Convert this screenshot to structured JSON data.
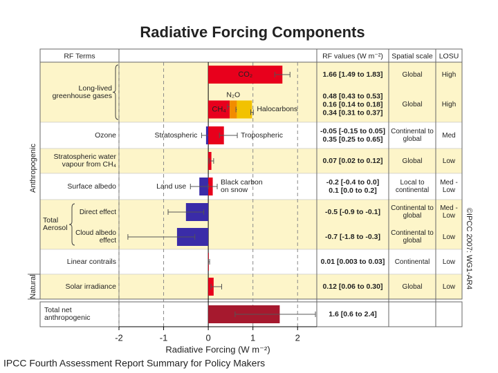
{
  "footer": "IPCC Fourth Assessment Report Summary for Policy Makers",
  "credit": "©IPCC 2007: WG1-AR4",
  "chart_data": {
    "type": "bar",
    "orientation": "horizontal",
    "title": "Radiative Forcing Components",
    "headers": [
      "RF Terms",
      "RF values (W m⁻²)",
      "Spatial scale",
      "LOSU"
    ],
    "xlabel": "Radiative Forcing (W m⁻²)",
    "xlim": [
      -2,
      2.43
    ],
    "xticks": [
      -2,
      -1,
      0,
      1,
      2
    ],
    "grid": true,
    "sections": [
      {
        "name": "Anthropogenic",
        "rows": [
          {
            "term": "Long-lived greenhouse gases",
            "subrows": [
              {
                "scale": "Global",
                "losu": "High",
                "bars": [
                  {
                    "name": "CO₂",
                    "label_at": "inside",
                    "value": 1.66,
                    "range": [
                      1.49,
                      1.83
                    ],
                    "value_label": "1.66 [1.49 to 1.83]",
                    "color": "#e8001c"
                  }
                ]
              },
              {
                "scale": "Global",
                "losu": "High",
                "stacked": true,
                "bars": [
                  {
                    "name": "CH₄",
                    "label_at": "inside",
                    "value": 0.48,
                    "range": [
                      0.43,
                      0.53
                    ],
                    "value_label": "0.48 [0.43 to 0.53]",
                    "color": "#e8001c"
                  },
                  {
                    "name": "N₂O",
                    "label_at": "above",
                    "value": 0.16,
                    "range": [
                      0.14,
                      0.18
                    ],
                    "value_label": "0.16 [0.14 to 0.18]",
                    "color": "#f28c00"
                  },
                  {
                    "name": "Halocarbons",
                    "label_at": "right",
                    "value": 0.34,
                    "range": [
                      0.31,
                      0.37
                    ],
                    "value_label": "0.34 [0.31 to 0.37]",
                    "color": "#f2c200"
                  }
                ]
              }
            ]
          },
          {
            "term": "Ozone",
            "subrows": [
              {
                "scale": "Continental to global",
                "losu": "Med",
                "bars": [
                  {
                    "name": "Stratospheric",
                    "label_at": "left",
                    "value": -0.05,
                    "range": [
                      -0.15,
                      0.05
                    ],
                    "value_label": "-0.05 [-0.15 to 0.05]",
                    "color": "#3a2ca8"
                  },
                  {
                    "name": "Tropospheric",
                    "label_at": "right",
                    "value": 0.35,
                    "range": [
                      0.25,
                      0.65
                    ],
                    "value_label": "0.35 [0.25 to 0.65]",
                    "color": "#e8001c"
                  }
                ]
              }
            ]
          },
          {
            "term": "Stratospheric water vapour from CH₄",
            "subrows": [
              {
                "scale": "Global",
                "losu": "Low",
                "bars": [
                  {
                    "value": 0.07,
                    "range": [
                      0.02,
                      0.12
                    ],
                    "value_label": "0.07 [0.02 to 0.12]",
                    "color": "#e8001c"
                  }
                ]
              }
            ]
          },
          {
            "term": "Surface albedo",
            "subrows": [
              {
                "scale": "Local to continental",
                "losu": "Med - Low",
                "bars": [
                  {
                    "name": "Land use",
                    "label_at": "left",
                    "value": -0.2,
                    "range": [
                      -0.4,
                      0.0
                    ],
                    "value_label": "-0.2 [-0.4 to 0.0]",
                    "color": "#3a2ca8"
                  },
                  {
                    "name": "Black carbon on snow",
                    "label_at": "right",
                    "value": 0.1,
                    "range": [
                      0.0,
                      0.2
                    ],
                    "value_label": "0.1 [0.0 to 0.2]",
                    "color": "#e8001c"
                  }
                ]
              }
            ]
          },
          {
            "term": "Total Aerosol",
            "subrows": [
              {
                "term": "Direct effect",
                "scale": "Continental to global",
                "losu": "Med - Low",
                "bars": [
                  {
                    "value": -0.5,
                    "range": [
                      -0.9,
                      -0.1
                    ],
                    "value_label": "-0.5 [-0.9 to -0.1]",
                    "color": "#3a2ca8"
                  }
                ]
              },
              {
                "term": "Cloud albedo effect",
                "scale": "Continental to global",
                "losu": "Low",
                "bars": [
                  {
                    "value": -0.7,
                    "range": [
                      -1.8,
                      -0.3
                    ],
                    "value_label": "-0.7 [-1.8 to -0.3]",
                    "color": "#3a2ca8"
                  }
                ]
              }
            ]
          },
          {
            "term": "Linear contrails",
            "subrows": [
              {
                "scale": "Continental",
                "losu": "Low",
                "bars": [
                  {
                    "value": 0.01,
                    "range": [
                      0.003,
                      0.03
                    ],
                    "value_label": "0.01 [0.003 to 0.03]",
                    "color": "#e8001c"
                  }
                ]
              }
            ]
          }
        ]
      },
      {
        "name": "Natural",
        "rows": [
          {
            "term": "Solar irradiance",
            "subrows": [
              {
                "scale": "Global",
                "losu": "Low",
                "bars": [
                  {
                    "value": 0.12,
                    "range": [
                      0.06,
                      0.3
                    ],
                    "value_label": "0.12 [0.06 to 0.30]",
                    "color": "#e8001c"
                  }
                ]
              }
            ]
          }
        ]
      }
    ],
    "total": {
      "term": "Total net anthropogenic",
      "subrows": [
        {
          "bars": [
            {
              "value": 1.6,
              "range": [
                0.6,
                2.4
              ],
              "value_label": "1.6 [0.6 to 2.4]",
              "color": "#a6192e"
            }
          ]
        }
      ]
    }
  }
}
